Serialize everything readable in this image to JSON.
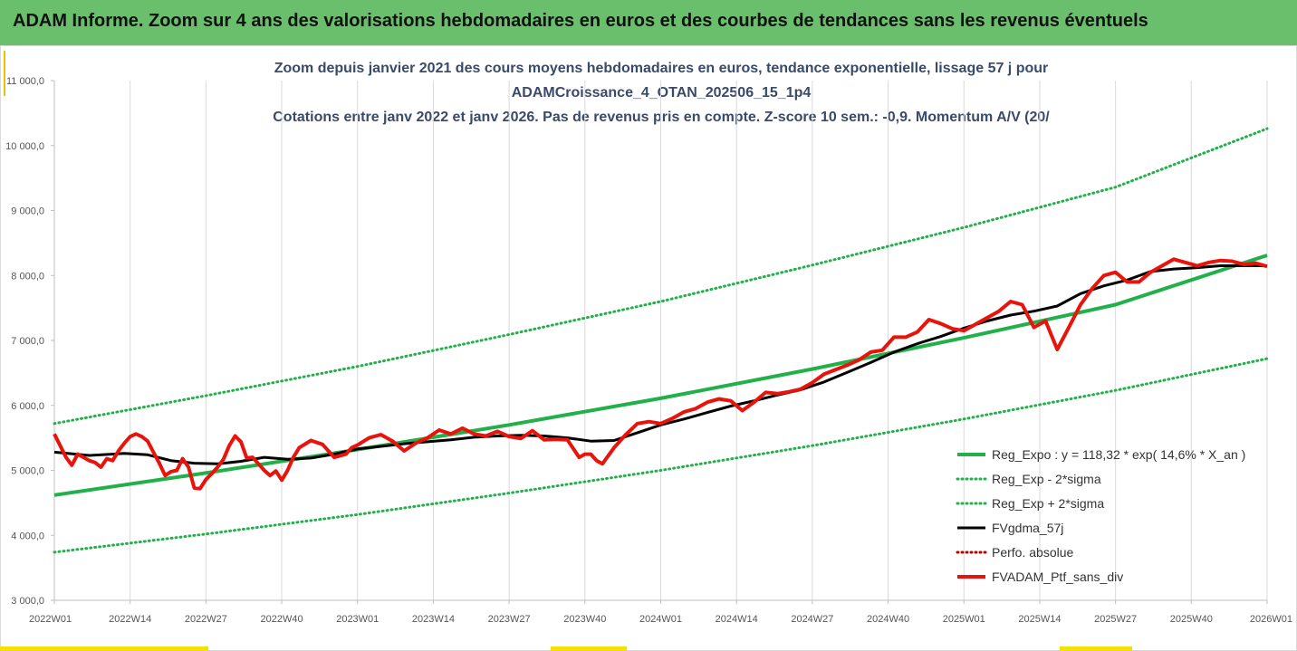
{
  "header": {
    "title": "ADAM Informe. Zoom sur 4 ans des valorisations hebdomadaires en euros et des courbes de tendances sans les revenus éventuels"
  },
  "colors": {
    "banner": "#6abf6c",
    "reg_expo": "#22b04a",
    "reg_sigma": "#22b04a",
    "fvgdma": "#000000",
    "perfo": "#c00000",
    "fvadam": "#e8140c"
  },
  "chart_data": {
    "type": "line",
    "title_lines": [
      "Zoom depuis janvier 2021 des cours moyens hebdomadaires  en euros, tendance exponentielle, lissage 57 j pour",
      "ADAMCroissance_4_OTAN_202506_15_1p4",
      "Cotations entre janv 2022 et janv 2026. Pas de revenus pris en compte. Z-score 10 sem.: -0,9. Momentum A/V (20/"
    ],
    "x_tick_labels": [
      "2022W01",
      "2022W14",
      "2022W27",
      "2022W40",
      "2023W01",
      "2023W14",
      "2023W27",
      "2023W40",
      "2024W01",
      "2024W14",
      "2024W27",
      "2024W40",
      "2025W01",
      "2025W14",
      "2025W27",
      "2025W40",
      "2026W01"
    ],
    "y_tick_labels": [
      "3 000,0",
      "4 000,0",
      "5 000,0",
      "6 000,0",
      "7 000,0",
      "8 000,0",
      "9 000,0",
      "10 000,0",
      "11 000,0"
    ],
    "ylim": [
      3000,
      11000
    ],
    "x_range_weeks": [
      0,
      208
    ],
    "grid": "vertical",
    "legend_position": "bottom-right",
    "series": [
      {
        "name": "Reg_Expo : y = 118,32 * exp( 14,6% *  X_an )",
        "style": "solid-thick",
        "x": [
          0,
          26,
          52,
          78,
          104,
          130,
          156,
          182,
          208
        ],
        "values": [
          4620,
          4960,
          5320,
          5700,
          6110,
          6560,
          7040,
          7550,
          8310
        ]
      },
      {
        "name": "Reg_Exp - 2*sigma",
        "style": "dotted",
        "x": [
          0,
          26,
          52,
          78,
          104,
          130,
          156,
          182,
          208
        ],
        "values": [
          3740,
          4020,
          4320,
          4650,
          5000,
          5380,
          5790,
          6230,
          6720
        ]
      },
      {
        "name": "Reg_Exp + 2*sigma",
        "style": "dotted",
        "x": [
          0,
          26,
          52,
          78,
          104,
          130,
          156,
          182,
          208
        ],
        "values": [
          5720,
          6150,
          6600,
          7090,
          7600,
          8160,
          8740,
          9360,
          10260
        ]
      },
      {
        "name": "FVgdma_57j",
        "style": "solid",
        "x": [
          0,
          6,
          12,
          16,
          20,
          24,
          28,
          32,
          36,
          40,
          44,
          48,
          52,
          56,
          60,
          64,
          68,
          72,
          76,
          80,
          84,
          88,
          92,
          96,
          100,
          104,
          108,
          112,
          116,
          120,
          124,
          128,
          132,
          136,
          140,
          144,
          148,
          152,
          156,
          160,
          164,
          168,
          172,
          176,
          180,
          184,
          188,
          192,
          196,
          200,
          204,
          208
        ],
        "values": [
          5280,
          5230,
          5260,
          5240,
          5150,
          5110,
          5100,
          5140,
          5200,
          5170,
          5190,
          5250,
          5330,
          5370,
          5410,
          5440,
          5470,
          5510,
          5530,
          5540,
          5530,
          5500,
          5450,
          5460,
          5580,
          5700,
          5790,
          5890,
          5990,
          6070,
          6160,
          6240,
          6360,
          6510,
          6660,
          6820,
          6950,
          7060,
          7190,
          7300,
          7390,
          7450,
          7530,
          7720,
          7840,
          7930,
          8060,
          8100,
          8120,
          8150,
          8150,
          8150
        ]
      },
      {
        "name": "Perfo. absolue",
        "style": "dotted",
        "values": []
      },
      {
        "name": "FVADAM_Ptf_sans_div",
        "style": "solid-thick",
        "x": [
          0,
          2,
          3,
          4,
          6,
          7,
          8,
          9,
          10,
          11,
          12,
          13,
          14,
          15,
          16,
          17,
          18,
          19,
          20,
          21,
          22,
          23,
          24,
          25,
          26,
          27,
          28,
          29,
          30,
          31,
          32,
          33,
          34,
          36,
          37,
          38,
          39,
          40,
          41,
          42,
          44,
          46,
          48,
          50,
          51,
          52,
          54,
          56,
          58,
          60,
          62,
          64,
          66,
          68,
          70,
          72,
          74,
          76,
          78,
          80,
          82,
          84,
          86,
          88,
          90,
          91,
          92,
          93,
          94,
          96,
          98,
          100,
          102,
          104,
          106,
          108,
          110,
          112,
          114,
          116,
          118,
          120,
          122,
          124,
          126,
          128,
          130,
          132,
          134,
          136,
          138,
          140,
          142,
          144,
          146,
          148,
          150,
          152,
          154,
          156,
          158,
          160,
          162,
          164,
          166,
          168,
          170,
          172,
          174,
          176,
          178,
          180,
          182,
          184,
          186,
          188,
          190,
          192,
          194,
          196,
          198,
          200,
          202,
          204,
          206,
          208
        ],
        "values": [
          5560,
          5200,
          5080,
          5250,
          5150,
          5120,
          5050,
          5180,
          5150,
          5300,
          5420,
          5520,
          5560,
          5520,
          5450,
          5280,
          5110,
          4920,
          4980,
          5000,
          5180,
          5050,
          4730,
          4720,
          4860,
          4950,
          5050,
          5170,
          5380,
          5530,
          5440,
          5190,
          5200,
          5000,
          4920,
          4990,
          4850,
          5000,
          5200,
          5350,
          5460,
          5400,
          5200,
          5250,
          5350,
          5390,
          5500,
          5550,
          5450,
          5300,
          5420,
          5500,
          5620,
          5560,
          5650,
          5560,
          5530,
          5600,
          5520,
          5490,
          5610,
          5470,
          5480,
          5470,
          5200,
          5250,
          5250,
          5150,
          5100,
          5350,
          5550,
          5720,
          5750,
          5720,
          5800,
          5900,
          5950,
          6050,
          6100,
          6070,
          5920,
          6050,
          6200,
          6180,
          6210,
          6250,
          6350,
          6480,
          6550,
          6620,
          6700,
          6820,
          6850,
          7050,
          7050,
          7130,
          7320,
          7260,
          7180,
          7150,
          7250,
          7350,
          7450,
          7600,
          7550,
          7200,
          7300,
          6860,
          7200,
          7550,
          7800,
          8000,
          8050,
          7900,
          7900,
          8050,
          8150,
          8250,
          8200,
          8150,
          8200,
          8230,
          8220,
          8170,
          8190,
          8140
        ]
      }
    ]
  }
}
